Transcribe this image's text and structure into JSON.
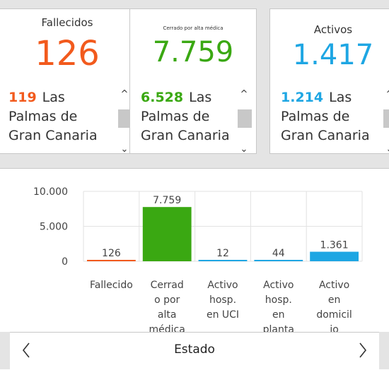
{
  "cards": [
    {
      "title": "Fallecidos",
      "value": "126",
      "color": "#f25a1d",
      "item_num": "119",
      "item_text": "Las Palmas de Gran Canaria"
    },
    {
      "title": "Cerrado por alta médica",
      "value": "7.759",
      "color": "#3aa812",
      "item_num": "6.528",
      "item_text": "Las Palmas de Gran Canaria"
    },
    {
      "title": "Activos",
      "value": "1.417",
      "color": "#1ea6e3",
      "item_num": "1.214",
      "item_text": "Las Palmas de Gran Canaria"
    }
  ],
  "chart_data": {
    "type": "bar",
    "categories": [
      "Fallecido",
      "Cerrado por alta médica",
      "Activo hosp. en UCI",
      "Activo hosp. en planta",
      "Activo en domicilio"
    ],
    "category_labels": [
      [
        "Fallecido"
      ],
      [
        "Cerrad",
        "o por",
        "alta",
        "médica"
      ],
      [
        "Activo",
        "hosp.",
        "en UCI"
      ],
      [
        "Activo",
        "hosp.",
        "en",
        "planta"
      ],
      [
        "Activo",
        "en",
        "domicil",
        "io"
      ]
    ],
    "values": [
      126,
      7759,
      12,
      44,
      1361
    ],
    "value_labels": [
      "126",
      "7.759",
      "12",
      "44",
      "1.361"
    ],
    "colors": [
      "#f25a1d",
      "#3aa812",
      "#1ea6e3",
      "#1ea6e3",
      "#1ea6e3"
    ],
    "yticks": [
      "0",
      "5.000",
      "10.000"
    ],
    "ytick_values": [
      0,
      5000,
      10000
    ],
    "ylim": [
      0,
      10000
    ],
    "grid": true
  },
  "footer": {
    "label": "Estado"
  }
}
